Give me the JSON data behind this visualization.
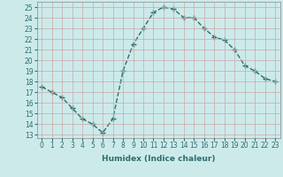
{
  "x": [
    0,
    1,
    2,
    3,
    4,
    5,
    6,
    7,
    8,
    9,
    10,
    11,
    12,
    13,
    14,
    15,
    16,
    17,
    18,
    19,
    20,
    21,
    22,
    23
  ],
  "y": [
    17.5,
    17.0,
    16.5,
    15.5,
    14.5,
    14.0,
    13.2,
    14.5,
    19.0,
    21.5,
    23.0,
    24.5,
    25.0,
    24.8,
    24.0,
    24.0,
    23.0,
    22.2,
    21.9,
    21.0,
    19.5,
    19.0,
    18.3,
    18.0
  ],
  "line_color": "#2d6e6e",
  "marker": "+",
  "marker_size": 4,
  "bg_color": "#cdeaea",
  "grid_color": "#c8a8a8",
  "xlabel": "Humidex (Indice chaleur)",
  "ylabel_ticks": [
    13,
    14,
    15,
    16,
    17,
    18,
    19,
    20,
    21,
    22,
    23,
    24,
    25
  ],
  "ylim": [
    12.7,
    25.5
  ],
  "xlim": [
    -0.5,
    23.5
  ],
  "tick_fontsize": 5.5,
  "xlabel_fontsize": 6.5,
  "linewidth": 1.0
}
